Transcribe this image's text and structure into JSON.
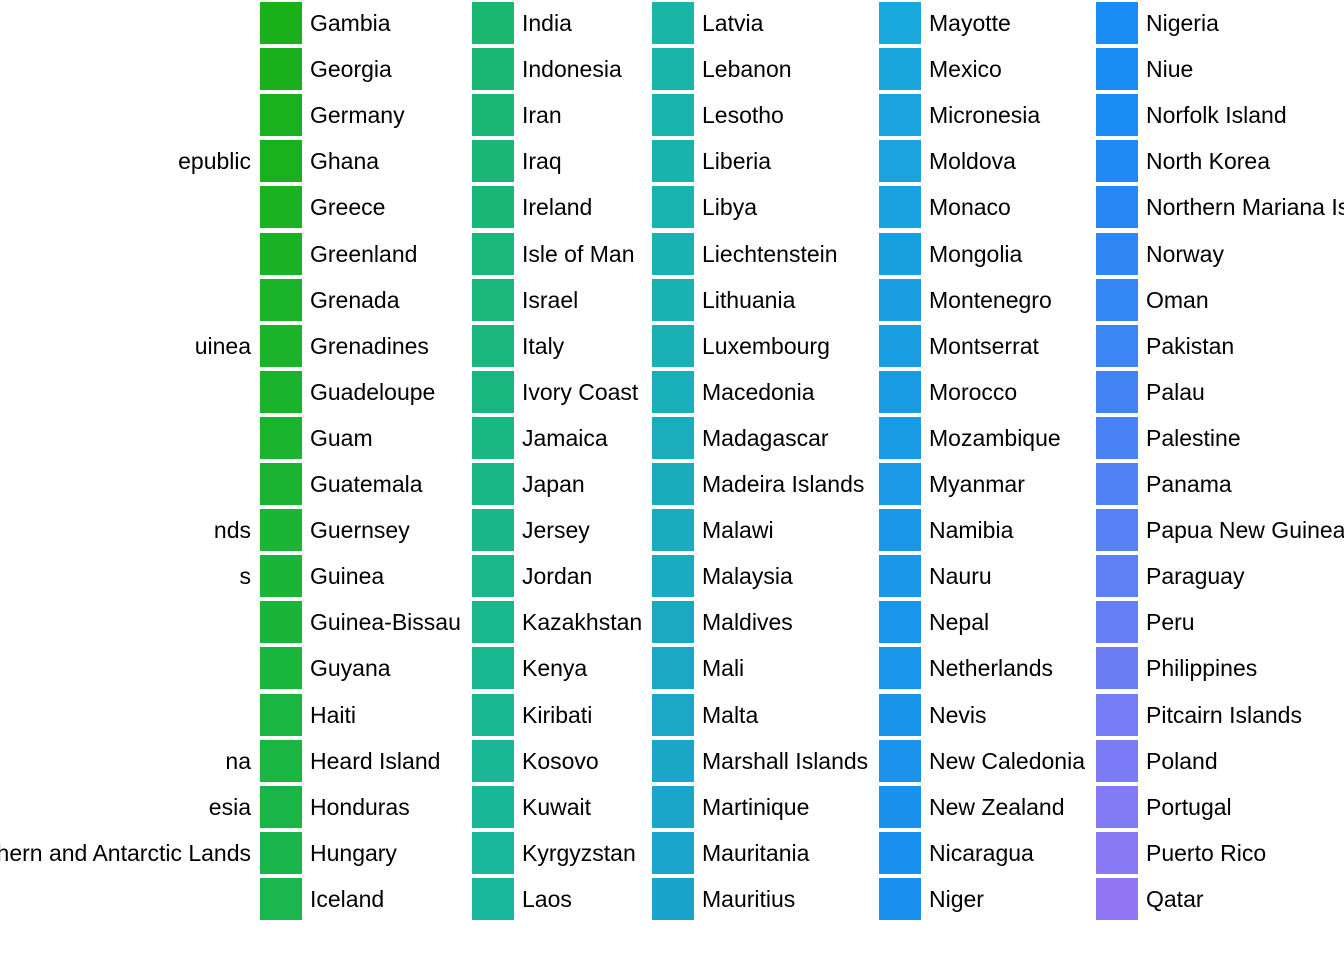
{
  "chart_data": {
    "type": "legend",
    "title": "",
    "partial_column_labels": [
      "",
      "",
      "",
      "epublic",
      "",
      "",
      "",
      "uinea",
      "",
      "",
      "",
      "nds",
      "s",
      "",
      "",
      "",
      "na",
      "esia",
      "hern and Antarctic Lands",
      ""
    ],
    "columns": [
      {
        "entries": [
          {
            "label": "Gambia",
            "color": "#19b019"
          },
          {
            "label": "Georgia",
            "color": "#19b01b"
          },
          {
            "label": "Germany",
            "color": "#19b11d"
          },
          {
            "label": "Ghana",
            "color": "#1ab11f"
          },
          {
            "label": "Greece",
            "color": "#1ab222"
          },
          {
            "label": "Greenland",
            "color": "#1ab224"
          },
          {
            "label": "Grenada",
            "color": "#1ab327"
          },
          {
            "label": "Grenadines",
            "color": "#1ab329"
          },
          {
            "label": "Guadeloupe",
            "color": "#1ab42c"
          },
          {
            "label": "Guam",
            "color": "#1ab42f"
          },
          {
            "label": "Guatemala",
            "color": "#1ab432"
          },
          {
            "label": "Guernsey",
            "color": "#1ab535"
          },
          {
            "label": "Guinea",
            "color": "#1ab538"
          },
          {
            "label": "Guinea-Bissau",
            "color": "#19b53b"
          },
          {
            "label": "Guyana",
            "color": "#19b63e"
          },
          {
            "label": "Haiti",
            "color": "#19b641"
          },
          {
            "label": "Heard Island",
            "color": "#19b644"
          },
          {
            "label": "Honduras",
            "color": "#19b647"
          },
          {
            "label": "Hungary",
            "color": "#19b74b"
          },
          {
            "label": "Iceland",
            "color": "#19b74e"
          }
        ]
      },
      {
        "entries": [
          {
            "label": "India",
            "color": "#19b76f"
          },
          {
            "label": "Indonesia",
            "color": "#19b771"
          },
          {
            "label": "Iran",
            "color": "#19b773"
          },
          {
            "label": "Iraq",
            "color": "#19b775"
          },
          {
            "label": "Ireland",
            "color": "#19b777"
          },
          {
            "label": "Isle of Man",
            "color": "#19b779"
          },
          {
            "label": "Israel",
            "color": "#19b77b"
          },
          {
            "label": "Italy",
            "color": "#19b77e"
          },
          {
            "label": "Ivory Coast",
            "color": "#19b780"
          },
          {
            "label": "Jamaica",
            "color": "#19b782"
          },
          {
            "label": "Japan",
            "color": "#19b784"
          },
          {
            "label": "Jersey",
            "color": "#19b787"
          },
          {
            "label": "Jordan",
            "color": "#19b789"
          },
          {
            "label": "Kazakhstan",
            "color": "#19b78c"
          },
          {
            "label": "Kenya",
            "color": "#19b78f"
          },
          {
            "label": "Kiribati",
            "color": "#19b792"
          },
          {
            "label": "Kosovo",
            "color": "#19b795"
          },
          {
            "label": "Kuwait",
            "color": "#19b798"
          },
          {
            "label": "Kyrgyzstan",
            "color": "#19b79b"
          },
          {
            "label": "Laos",
            "color": "#19b79e"
          }
        ]
      },
      {
        "entries": [
          {
            "label": "Latvia",
            "color": "#19b6a8"
          },
          {
            "label": "Lebanon",
            "color": "#19b5aa"
          },
          {
            "label": "Lesotho",
            "color": "#19b4ac"
          },
          {
            "label": "Liberia",
            "color": "#19b3ae"
          },
          {
            "label": "Libya",
            "color": "#19b3b0"
          },
          {
            "label": "Liechtenstein",
            "color": "#19b2b2"
          },
          {
            "label": "Lithuania",
            "color": "#19b1b4"
          },
          {
            "label": "Luxembourg",
            "color": "#19b0b6"
          },
          {
            "label": "Macedonia",
            "color": "#19afb8"
          },
          {
            "label": "Madagascar",
            "color": "#19aeba"
          },
          {
            "label": "Madeira Islands",
            "color": "#19adbc"
          },
          {
            "label": "Malawi",
            "color": "#19acbe"
          },
          {
            "label": "Malaysia",
            "color": "#19abc0"
          },
          {
            "label": "Maldives",
            "color": "#19aac2"
          },
          {
            "label": "Mali",
            "color": "#19a9c4"
          },
          {
            "label": "Malta",
            "color": "#19a8c6"
          },
          {
            "label": "Marshall Islands",
            "color": "#19a7c8"
          },
          {
            "label": "Martinique",
            "color": "#19a6ca"
          },
          {
            "label": "Mauritania",
            "color": "#19a5cc"
          },
          {
            "label": "Mauritius",
            "color": "#19a4ce"
          }
        ]
      },
      {
        "entries": [
          {
            "label": "Mayotte",
            "color": "#19a8dc"
          },
          {
            "label": "Mexico",
            "color": "#19a6dd"
          },
          {
            "label": "Micronesia",
            "color": "#19a4de"
          },
          {
            "label": "Moldova",
            "color": "#19a3df"
          },
          {
            "label": "Monaco",
            "color": "#19a2e0"
          },
          {
            "label": "Mongolia",
            "color": "#19a0e1"
          },
          {
            "label": "Montenegro",
            "color": "#199fe2"
          },
          {
            "label": "Montserrat",
            "color": "#199de3"
          },
          {
            "label": "Morocco",
            "color": "#199ce4"
          },
          {
            "label": "Mozambique",
            "color": "#199ae5"
          },
          {
            "label": "Myanmar",
            "color": "#1999e6"
          },
          {
            "label": "Namibia",
            "color": "#1998e7"
          },
          {
            "label": "Nauru",
            "color": "#1997e8"
          },
          {
            "label": "Nepal",
            "color": "#1996e9"
          },
          {
            "label": "Netherlands",
            "color": "#1995ea"
          },
          {
            "label": "Nevis",
            "color": "#1994eb"
          },
          {
            "label": "New Caledonia",
            "color": "#1993ec"
          },
          {
            "label": "New Zealand",
            "color": "#1992ed"
          },
          {
            "label": "Nicaragua",
            "color": "#1991ee"
          },
          {
            "label": "Niger",
            "color": "#1990ef"
          }
        ]
      },
      {
        "entries": [
          {
            "label": "Nigeria",
            "color": "#198cf5"
          },
          {
            "label": "Niue",
            "color": "#198bf5"
          },
          {
            "label": "Norfolk Island",
            "color": "#1a8af5"
          },
          {
            "label": "North Korea",
            "color": "#2089f5"
          },
          {
            "label": "Northern Mariana Islands",
            "color": "#2788f5"
          },
          {
            "label": "Norway",
            "color": "#2e87f5"
          },
          {
            "label": "Oman",
            "color": "#3586f5"
          },
          {
            "label": "Pakistan",
            "color": "#3c85f5"
          },
          {
            "label": "Palau",
            "color": "#4384f5"
          },
          {
            "label": "Palestine",
            "color": "#4a83f5"
          },
          {
            "label": "Panama",
            "color": "#5182f5"
          },
          {
            "label": "Papua New Guinea",
            "color": "#5881f5"
          },
          {
            "label": "Paraguay",
            "color": "#5f80f5"
          },
          {
            "label": "Peru",
            "color": "#667ff5"
          },
          {
            "label": "Philippines",
            "color": "#6d7ef5"
          },
          {
            "label": "Pitcairn Islands",
            "color": "#747df5"
          },
          {
            "label": "Poland",
            "color": "#7b7cf5"
          },
          {
            "label": "Portugal",
            "color": "#827bf5"
          },
          {
            "label": "Puerto Rico",
            "color": "#8a79f5"
          },
          {
            "label": "Qatar",
            "color": "#9177f5"
          }
        ]
      }
    ]
  }
}
